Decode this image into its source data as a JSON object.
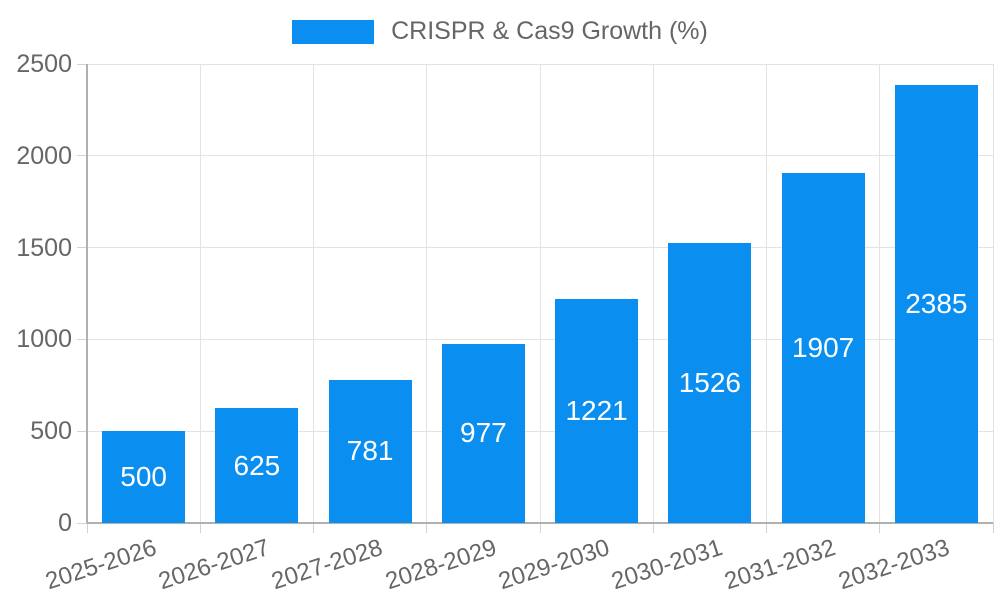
{
  "legend": {
    "label": "CRISPR & Cas9 Growth (%)"
  },
  "colors": {
    "bar": "#0a8ff1",
    "grid": "#e3e3e3",
    "axis": "#b0b0b0",
    "tick": "#d2d2d2",
    "text": "#666666",
    "value_label": "#ffffff",
    "background": "#ffffff"
  },
  "chart_data": {
    "type": "bar",
    "title": "CRISPR & Cas9 Growth (%)",
    "categories": [
      "2025-2026",
      "2026-2027",
      "2027-2028",
      "2028-2029",
      "2029-2030",
      "2030-2031",
      "2031-2032",
      "2032-2033"
    ],
    "values": [
      500,
      625,
      781,
      977,
      1221,
      1526,
      1907,
      2385
    ],
    "yticks": [
      0,
      500,
      1000,
      1500,
      2000,
      2500
    ],
    "ylim": [
      0,
      2500
    ],
    "xlabel": "",
    "ylabel": "",
    "grid": true,
    "legend_position": "top-center",
    "value_labels": "inside-center",
    "x_label_rotation_deg": -18
  }
}
